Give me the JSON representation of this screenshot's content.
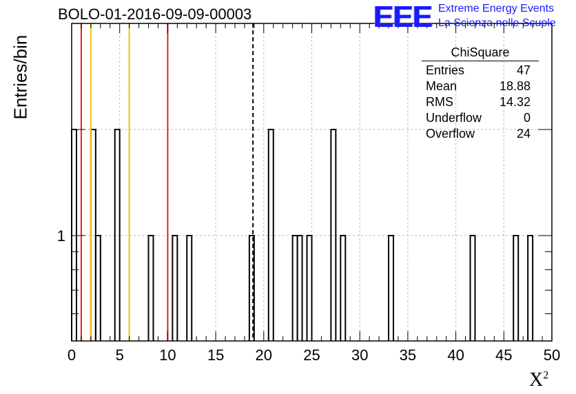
{
  "title": "BOLO-01-2016-09-09-00003",
  "logo": {
    "mark": "EEE",
    "line1": "Extreme Energy Events",
    "line2": "La Scienza nelle Scuole"
  },
  "stats": {
    "title": "ChiSquare",
    "rows": [
      {
        "label": "Entries",
        "value": "47"
      },
      {
        "label": "Mean",
        "value": "18.88"
      },
      {
        "label": "RMS",
        "value": "14.32"
      },
      {
        "label": "Underflow",
        "value": "0"
      },
      {
        "label": "Overflow",
        "value": "24"
      }
    ]
  },
  "chart_data": {
    "type": "bar",
    "ylabel": "Entries/bin",
    "xlabel": "X",
    "xlabel_sup": "2",
    "xlim": [
      0,
      50
    ],
    "ylog": true,
    "grid": true,
    "xticks": [
      "0",
      "5",
      "10",
      "15",
      "20",
      "25",
      "30",
      "35",
      "40",
      "45",
      "50"
    ],
    "yticks": [
      {
        "value": 1,
        "label": "1"
      }
    ],
    "bin_width": 0.5,
    "bins": [
      {
        "x": 0.0,
        "y": 2
      },
      {
        "x": 2.0,
        "y": 2
      },
      {
        "x": 2.5,
        "y": 1
      },
      {
        "x": 4.5,
        "y": 2
      },
      {
        "x": 8.0,
        "y": 1
      },
      {
        "x": 10.5,
        "y": 1
      },
      {
        "x": 12.0,
        "y": 1
      },
      {
        "x": 18.5,
        "y": 1
      },
      {
        "x": 20.5,
        "y": 2
      },
      {
        "x": 23.0,
        "y": 1
      },
      {
        "x": 23.5,
        "y": 1
      },
      {
        "x": 24.5,
        "y": 1
      },
      {
        "x": 27.0,
        "y": 2
      },
      {
        "x": 28.0,
        "y": 1
      },
      {
        "x": 33.0,
        "y": 1
      },
      {
        "x": 41.5,
        "y": 1
      },
      {
        "x": 46.0,
        "y": 1
      },
      {
        "x": 47.5,
        "y": 1
      }
    ],
    "reference_lines": [
      {
        "x": 1,
        "color": "#dd2222",
        "style": "solid"
      },
      {
        "x": 2,
        "color": "#f2c200",
        "style": "solid"
      },
      {
        "x": 6,
        "color": "#f2c200",
        "style": "solid"
      },
      {
        "x": 10,
        "color": "#dd2222",
        "style": "solid"
      },
      {
        "x": 18.88,
        "color": "#000000",
        "style": "dashed"
      }
    ]
  }
}
